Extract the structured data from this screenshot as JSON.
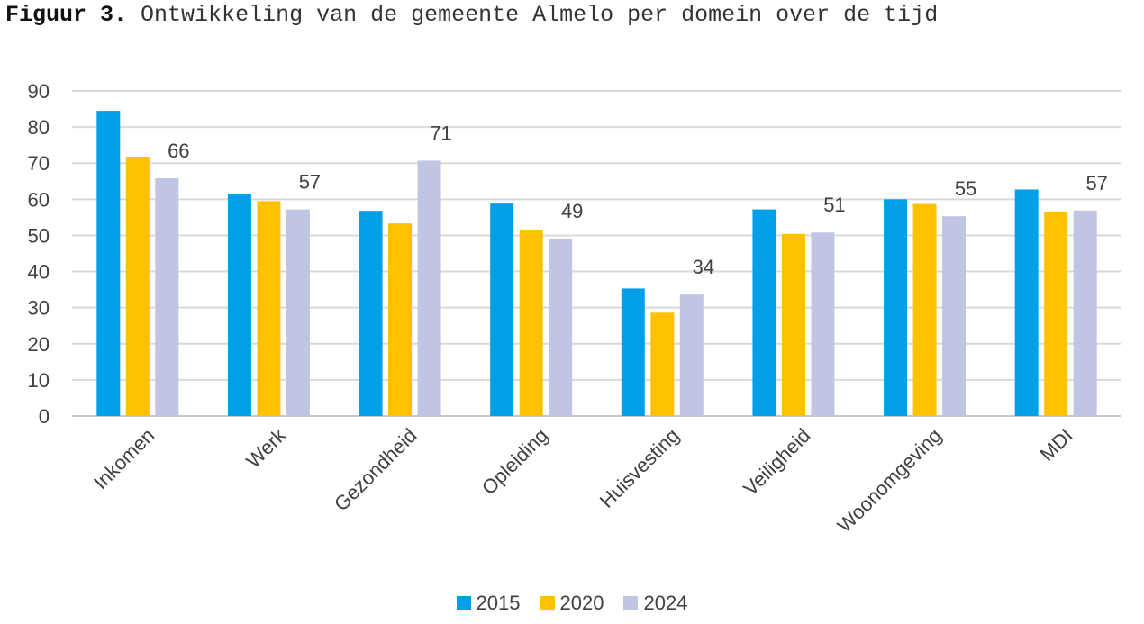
{
  "caption": {
    "label": "Figuur 3.",
    "text": "Ontwikkeling van de gemeente Almelo per domein over de tijd"
  },
  "chart_data": {
    "type": "bar",
    "title": "",
    "xlabel": "",
    "ylabel": "",
    "ylim": [
      0,
      90
    ],
    "yticks": [
      0,
      10,
      20,
      30,
      40,
      50,
      60,
      70,
      80,
      90
    ],
    "grid": true,
    "legend_position": "bottom",
    "categories": [
      "Inkomen",
      "Werk",
      "Gezondheid",
      "Opleiding",
      "Huisvesting",
      "Veiligheid",
      "Woonomgeving",
      "MDI"
    ],
    "series": [
      {
        "name": "2015",
        "color": "#00A0E9",
        "values": [
          84.5,
          61.5,
          56.8,
          58.8,
          35.3,
          57.2,
          60.0,
          62.7
        ]
      },
      {
        "name": "2020",
        "color": "#FFC000",
        "values": [
          71.8,
          59.5,
          53.3,
          51.6,
          28.6,
          50.4,
          58.7,
          56.6
        ]
      },
      {
        "name": "2024",
        "color": "#C0C5E1",
        "values": [
          65.8,
          57.2,
          70.7,
          49.1,
          33.6,
          50.8,
          55.3,
          56.9
        ]
      }
    ],
    "data_labels": {
      "series": "2024",
      "texts": [
        "66",
        "57",
        "71",
        "49",
        "34",
        "51",
        "55",
        "57"
      ]
    }
  }
}
